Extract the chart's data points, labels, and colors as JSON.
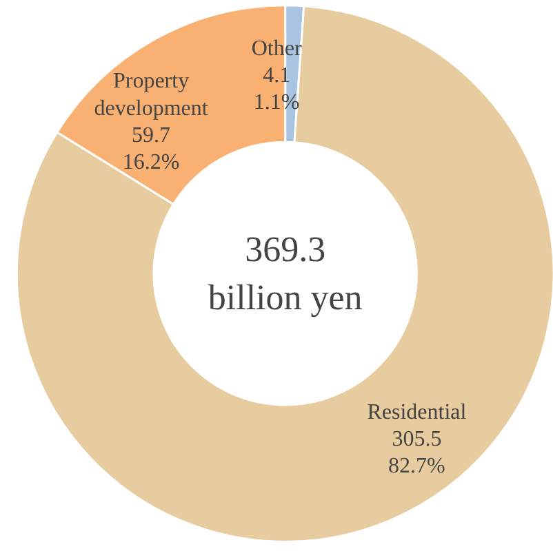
{
  "chart_data": {
    "type": "donut",
    "categories": [
      "Other",
      "Residential",
      "Property development"
    ],
    "values": [
      4.1,
      305.5,
      59.7
    ],
    "colors": [
      "#a9c4e0",
      "#e6cc9e",
      "#f9b173"
    ],
    "value_labels": [
      "4.1\n1.1%",
      "305.5\n82.7%",
      "59.7\n16.2%"
    ],
    "annotations": [
      "369.3\nbillion yen"
    ],
    "legend": false
  }
}
